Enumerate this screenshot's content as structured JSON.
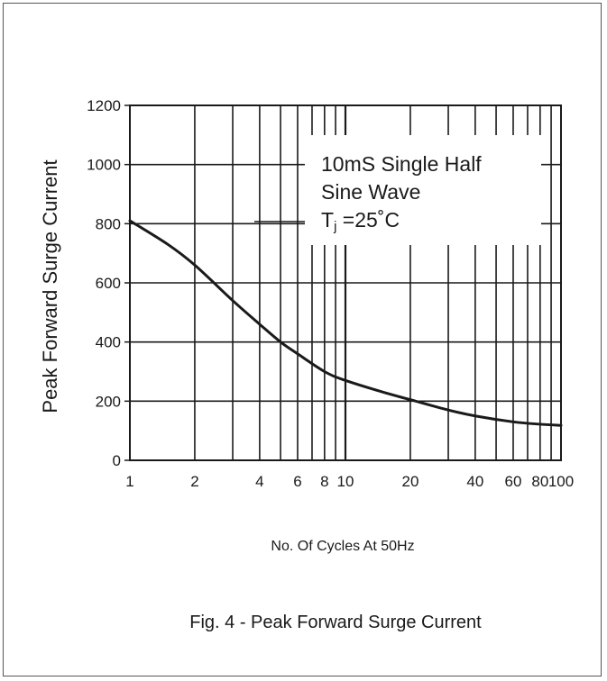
{
  "figure_caption": "Fig. 4 - Peak Forward Surge Current",
  "chart_data": {
    "type": "line",
    "xscale": "log",
    "xlim": [
      1,
      100
    ],
    "ylim": [
      0,
      1200
    ],
    "xlabel": "No. Of Cycles At 50Hz",
    "ylabel": "Peak Forward Surge Current",
    "x_ticks": [
      1,
      2,
      4,
      6,
      8,
      10,
      20,
      40,
      60,
      80,
      100
    ],
    "x_tick_labels": [
      "1",
      "2",
      "4",
      "6",
      "8",
      "10",
      "20",
      "40",
      "60",
      "80",
      "100"
    ],
    "y_ticks": [
      0,
      200,
      400,
      600,
      800,
      1000,
      1200
    ],
    "y_tick_labels": [
      "0",
      "200",
      "400",
      "600",
      "800",
      "1000",
      "1200"
    ],
    "grid": true,
    "annotation": {
      "line1": "10mS Single Half",
      "line2": "Sine Wave",
      "line3_prefix": "T",
      "line3_sub": "j",
      "line3_suffix": " =25˚C"
    },
    "series": [
      {
        "color": "#1a1a1a",
        "points": [
          {
            "x": 1,
            "y": 810
          },
          {
            "x": 1.5,
            "y": 730
          },
          {
            "x": 2,
            "y": 660
          },
          {
            "x": 3,
            "y": 540
          },
          {
            "x": 4,
            "y": 460
          },
          {
            "x": 5,
            "y": 400
          },
          {
            "x": 6,
            "y": 360
          },
          {
            "x": 8,
            "y": 300
          },
          {
            "x": 10,
            "y": 270
          },
          {
            "x": 15,
            "y": 230
          },
          {
            "x": 20,
            "y": 205
          },
          {
            "x": 30,
            "y": 170
          },
          {
            "x": 40,
            "y": 150
          },
          {
            "x": 60,
            "y": 130
          },
          {
            "x": 80,
            "y": 122
          },
          {
            "x": 100,
            "y": 118
          }
        ]
      }
    ]
  }
}
